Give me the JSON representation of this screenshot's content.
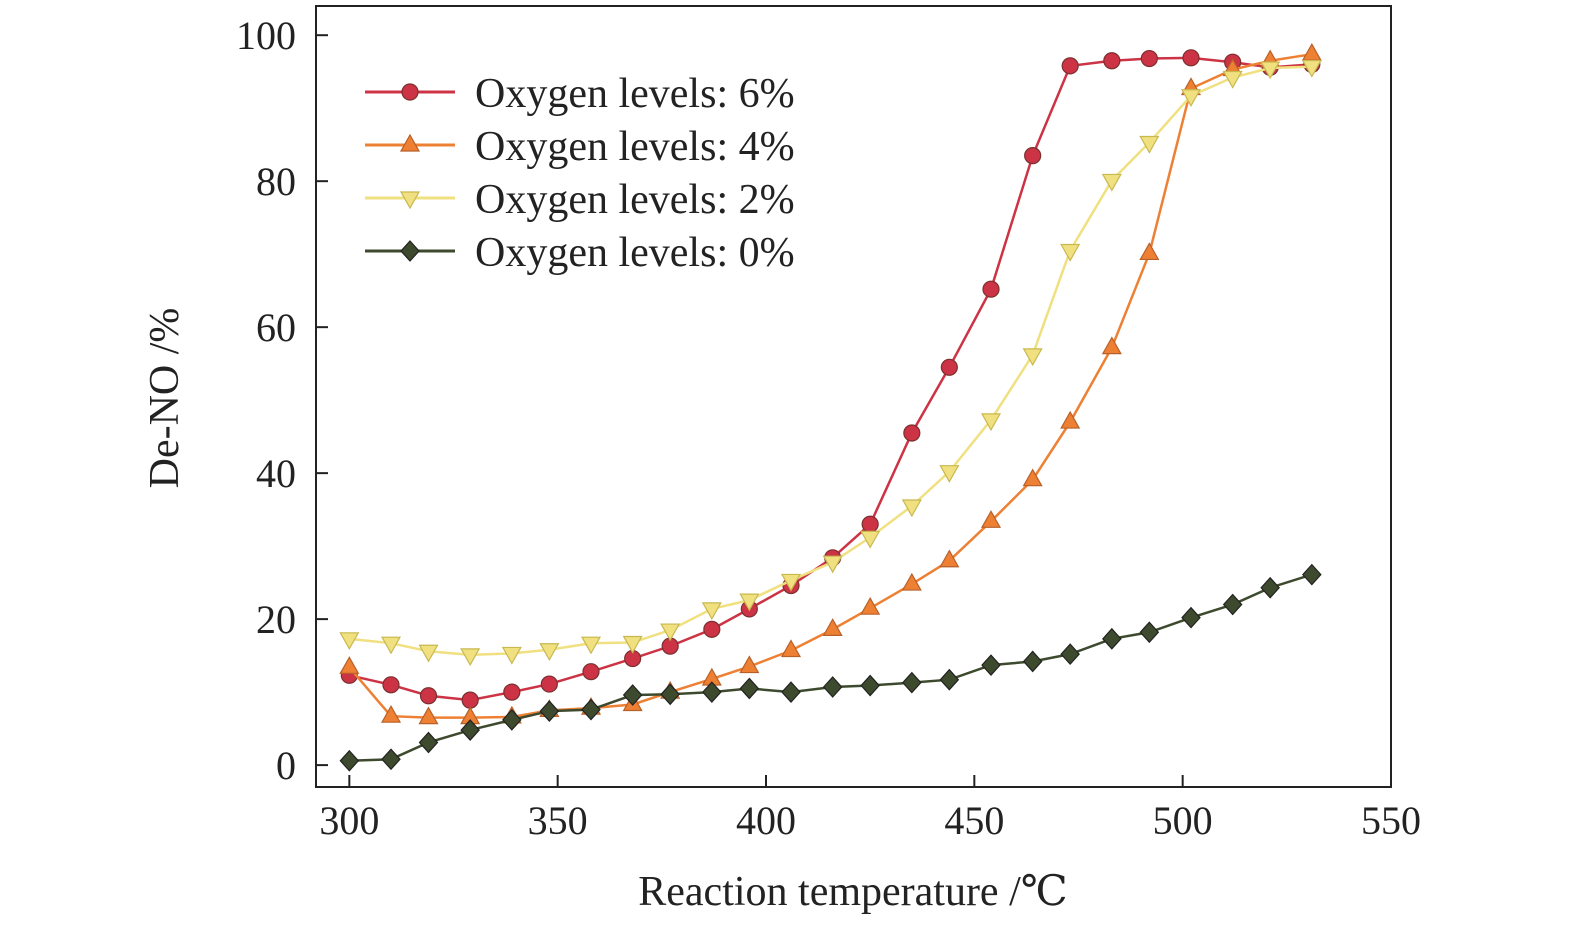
{
  "chart_data": {
    "type": "line",
    "title": "",
    "xlabel": "Reaction temperature /℃",
    "ylabel": "De-NO /%",
    "xlim": [
      292,
      550
    ],
    "ylim": [
      -3,
      104
    ],
    "xticks": [
      300,
      350,
      400,
      450,
      500,
      550
    ],
    "yticks": [
      0,
      20,
      40,
      60,
      80,
      100
    ],
    "grid": false,
    "legend_position": "top-left",
    "x": [
      300,
      310,
      319,
      329,
      339,
      348,
      358,
      368,
      377,
      387,
      396,
      406,
      416,
      425,
      435,
      444,
      454,
      464,
      473,
      483,
      492,
      502,
      512,
      521,
      531
    ],
    "series": [
      {
        "name": "Oxygen levels: 6%",
        "color": "#cc3344",
        "marker": "circle",
        "values": [
          12.3,
          11.0,
          9.5,
          8.9,
          10.0,
          11.1,
          12.8,
          14.6,
          16.3,
          18.6,
          21.4,
          24.6,
          28.4,
          33.0,
          45.5,
          54.5,
          65.2,
          83.5,
          95.8,
          96.5,
          96.8,
          96.9,
          96.3,
          95.6,
          96.0
        ]
      },
      {
        "name": "Oxygen levels: 4%",
        "color": "#ee8033",
        "marker": "triangle-up",
        "values": [
          13.4,
          6.7,
          6.5,
          6.5,
          6.6,
          7.5,
          7.8,
          8.3,
          10.0,
          11.8,
          13.5,
          15.7,
          18.6,
          21.5,
          24.8,
          28.0,
          33.4,
          39.1,
          47.0,
          57.2,
          70.1,
          92.7,
          95.3,
          96.5,
          97.4
        ]
      },
      {
        "name": "Oxygen levels: 2%",
        "color": "#f0e080",
        "marker": "triangle-down",
        "values": [
          17.3,
          16.7,
          15.6,
          15.1,
          15.3,
          15.8,
          16.7,
          16.8,
          18.5,
          21.4,
          22.6,
          25.3,
          27.8,
          31.2,
          35.5,
          40.2,
          47.3,
          56.2,
          70.5,
          80.1,
          85.3,
          91.7,
          94.2,
          95.5,
          95.7
        ]
      },
      {
        "name": "Oxygen levels: 0%",
        "color": "#3d4a2e",
        "marker": "diamond",
        "values": [
          0.6,
          0.8,
          3.1,
          4.8,
          6.2,
          7.4,
          7.6,
          9.6,
          9.7,
          10.0,
          10.5,
          10.0,
          10.7,
          10.9,
          11.3,
          11.7,
          13.7,
          14.2,
          15.2,
          17.3,
          18.2,
          20.2,
          22.0,
          24.3,
          26.1
        ]
      }
    ]
  }
}
